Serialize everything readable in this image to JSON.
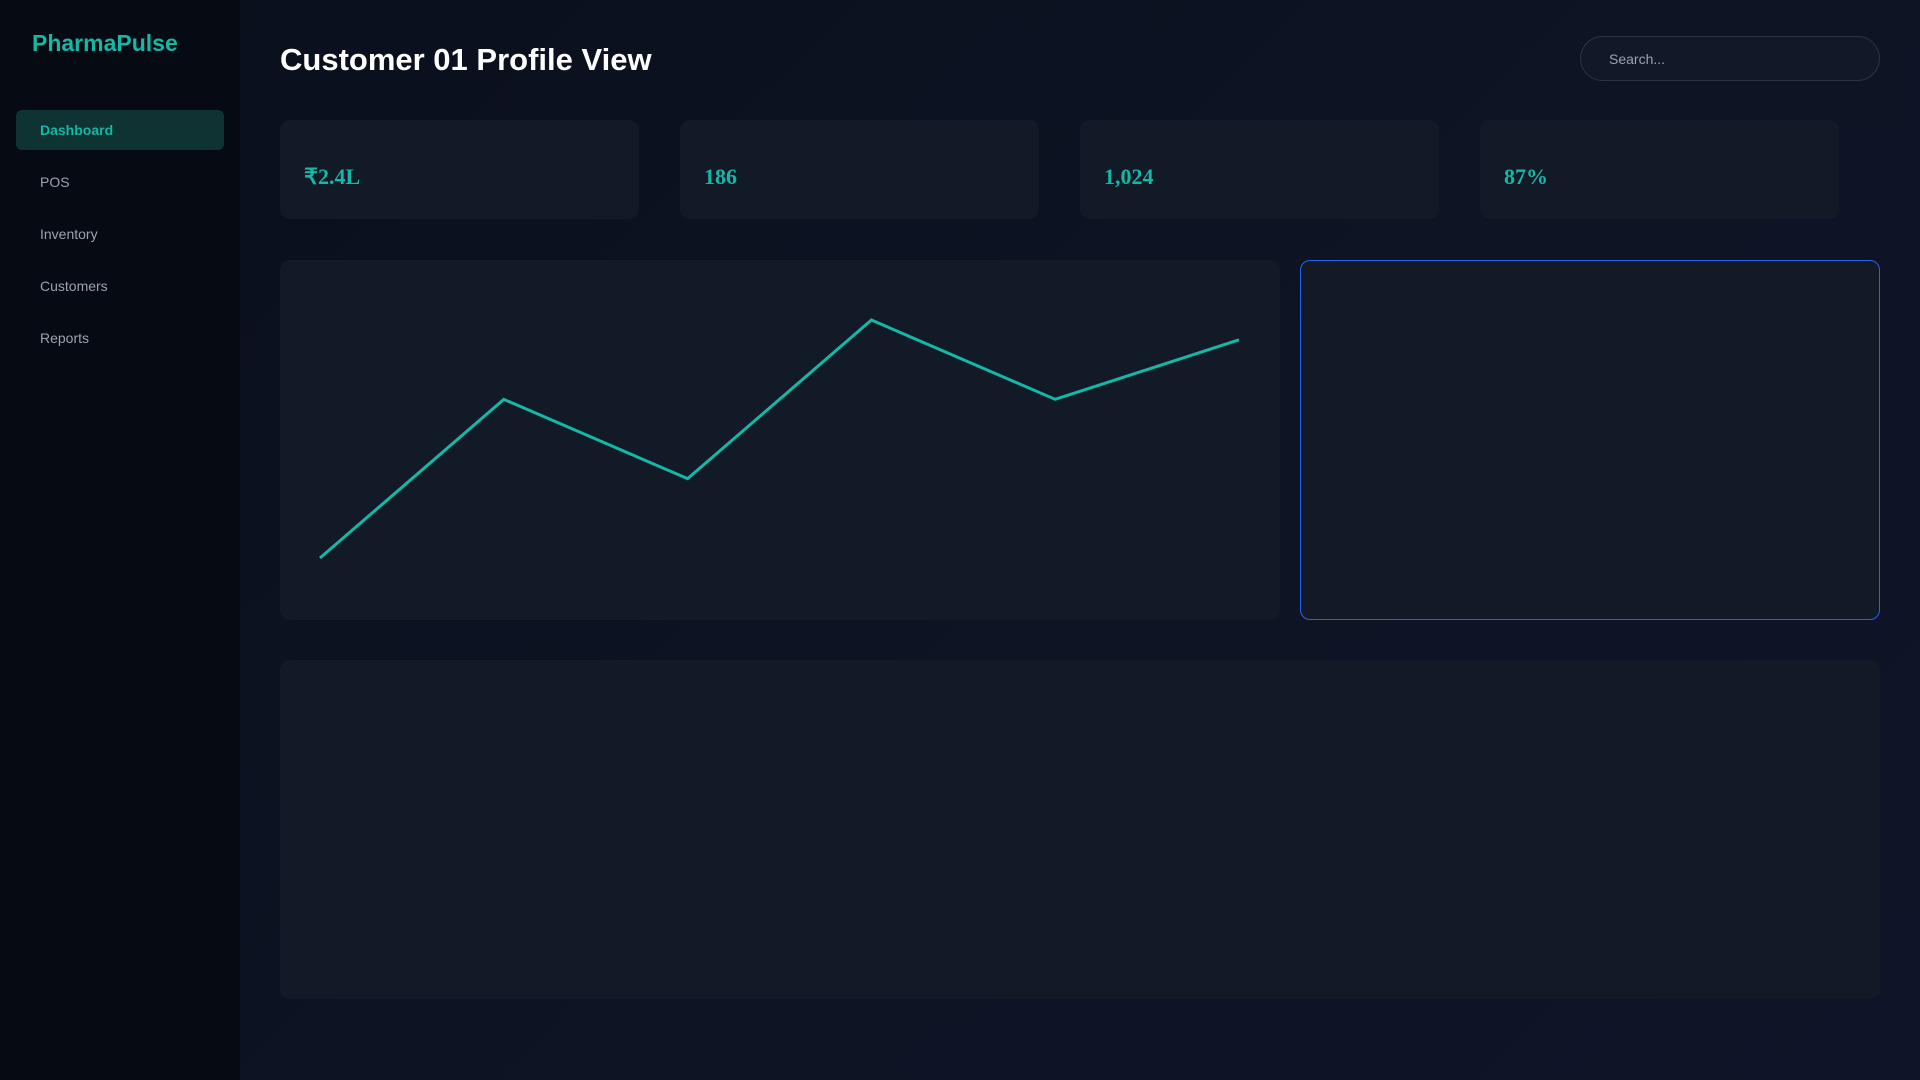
{
  "app": {
    "name": "PharmaPulse"
  },
  "nav": [
    "Dashboard",
    "POS",
    "Inventory",
    "Customers",
    "Reports"
  ],
  "header": {
    "title": "Customer 01 Profile View",
    "search_placeholder": "Search..."
  },
  "kpis": [
    "₹2.4L",
    "186",
    "1,024",
    "87%"
  ],
  "chart_data": {
    "type": "line",
    "values": [
      20,
      60,
      40,
      80,
      60,
      75
    ],
    "color": "#14b8a6"
  }
}
